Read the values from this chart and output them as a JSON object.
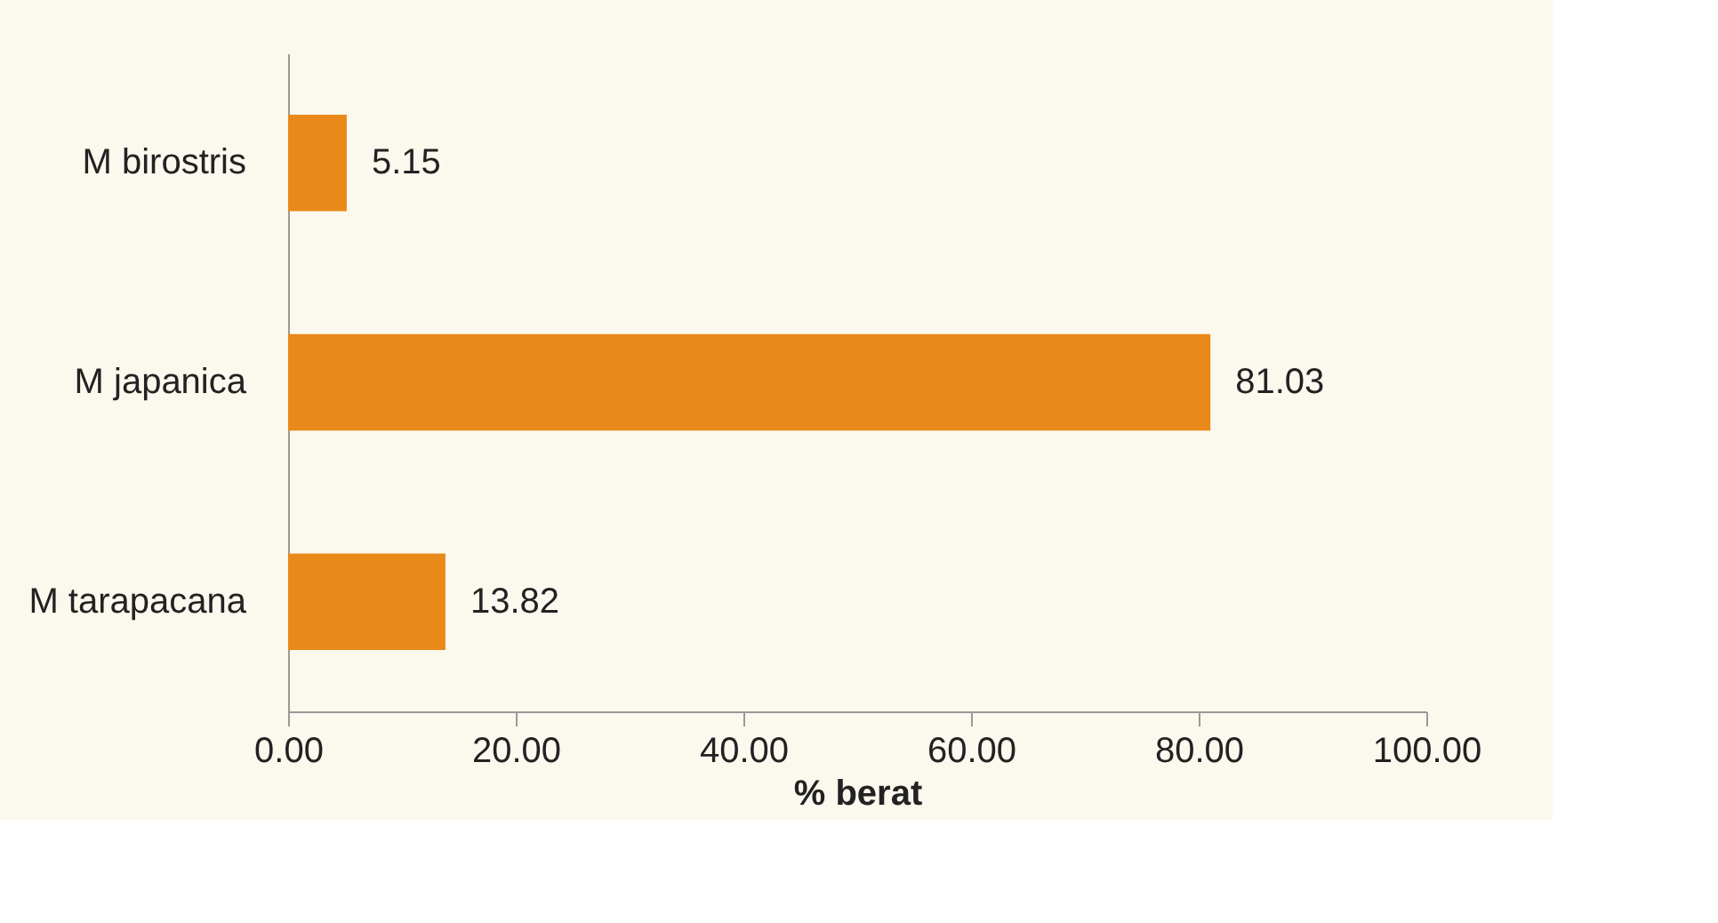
{
  "chart_data": {
    "type": "bar",
    "orientation": "horizontal",
    "xlabel": "% berat",
    "categories": [
      "M birostris",
      "M japanica",
      "M tarapacana"
    ],
    "values": [
      5.15,
      81.03,
      13.82
    ],
    "color": "#e8891a",
    "data_labels": true,
    "xlim": [
      0,
      100
    ],
    "xticks": [
      {
        "value": 0,
        "label": "0.00"
      },
      {
        "value": 20,
        "label": "20.00"
      },
      {
        "value": 40,
        "label": "40.00"
      },
      {
        "value": 60,
        "label": "60.00"
      },
      {
        "value": 80,
        "label": "80.00"
      },
      {
        "value": 100,
        "label": "100.00"
      }
    ],
    "grid": false
  }
}
